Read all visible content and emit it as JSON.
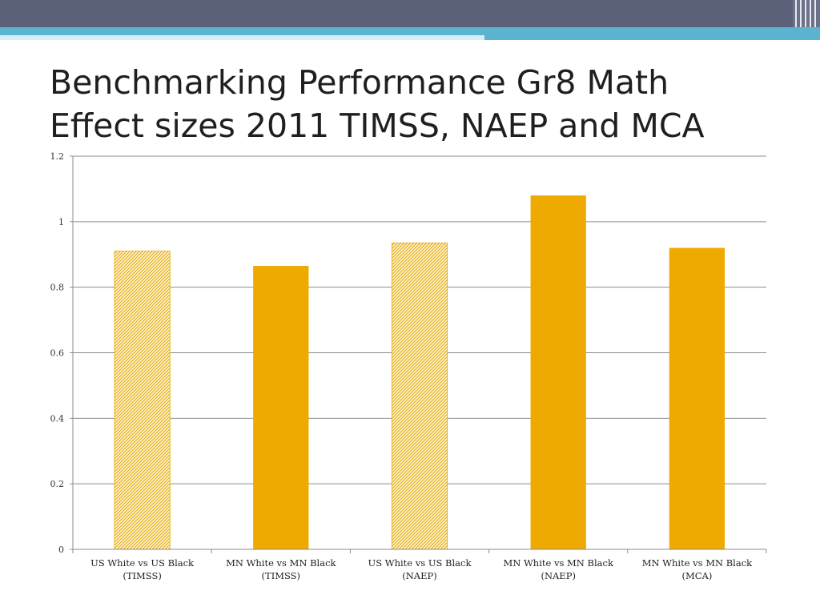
{
  "slide": {
    "title_line1": "Benchmarking Performance Gr8 Math",
    "title_line2": "Effect sizes 2011 TIMSS, NAEP and MCA"
  },
  "colors": {
    "header_band": "#5a6178",
    "accent": "#5ab4cf",
    "bar_fill": "#eeaa00",
    "gridline": "#8c8c8c"
  },
  "chart_data": {
    "type": "bar",
    "title": "",
    "xlabel": "",
    "ylabel": "",
    "ylim": [
      0,
      1.2
    ],
    "yticks": [
      "0",
      "0.2",
      "0.4",
      "0.6",
      "0.8",
      "1",
      "1.2"
    ],
    "yticks_values": [
      0,
      0.2,
      0.4,
      0.6,
      0.8,
      1.0,
      1.2
    ],
    "grid": true,
    "legend": "none",
    "categories": [
      [
        "US White vs US Black",
        "(TIMSS)"
      ],
      [
        "MN White vs MN Black",
        "(TIMSS)"
      ],
      [
        "US White vs US Black",
        "(NAEP)"
      ],
      [
        "MN White vs MN Black",
        "(NAEP)"
      ],
      [
        "MN White vs MN Black",
        "(MCA)"
      ]
    ],
    "values": [
      0.91,
      0.865,
      0.935,
      1.08,
      0.92
    ],
    "fill_style": [
      "hatched",
      "solid",
      "hatched",
      "solid",
      "solid"
    ]
  }
}
